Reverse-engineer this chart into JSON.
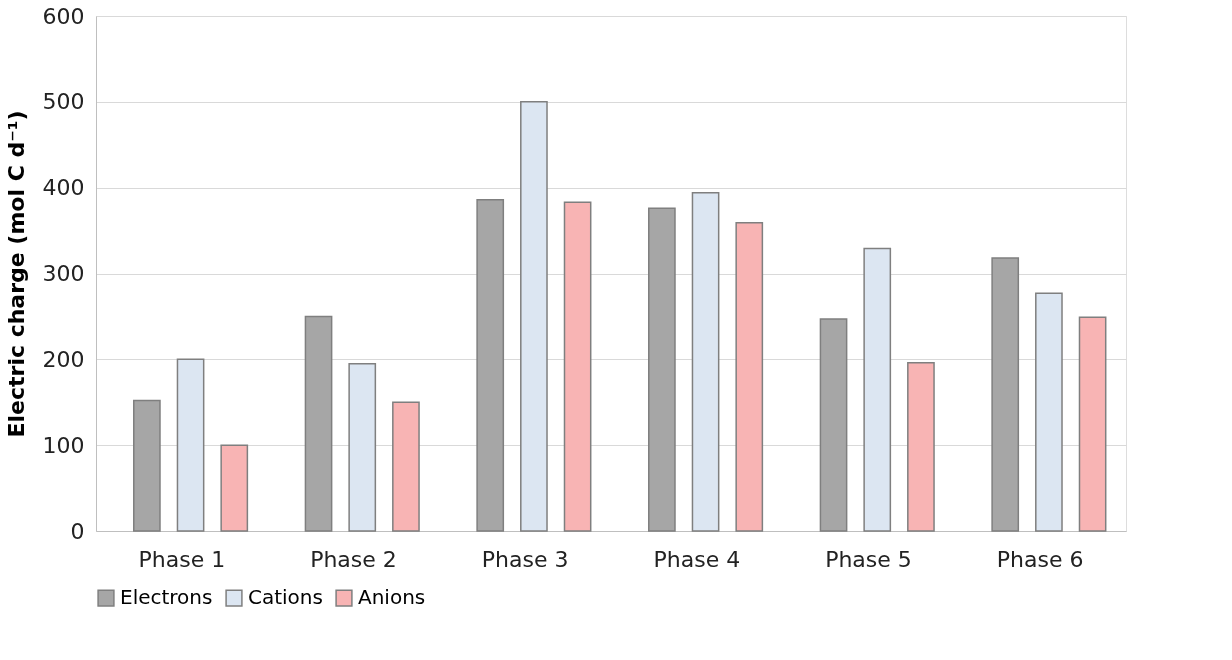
{
  "chart_data": {
    "type": "bar",
    "ylabel": "Electric charge (mol C d⁻¹)",
    "categories": [
      "Phase 1",
      "Phase 2",
      "Phase 3",
      "Phase 4",
      "Phase 5",
      "Phase 6"
    ],
    "series": [
      {
        "name": "Electrons",
        "color": "#a6a6a6",
        "values": [
          152,
          250,
          386,
          376,
          247,
          318
        ]
      },
      {
        "name": "Cations",
        "color": "#dce6f2",
        "values": [
          200,
          195,
          500,
          394,
          329,
          277
        ]
      },
      {
        "name": "Anions",
        "color": "#f8b4b4",
        "values": [
          100,
          150,
          383,
          359,
          196,
          249
        ]
      }
    ],
    "ylim": [
      0,
      600
    ],
    "yticks": [
      0,
      100,
      200,
      300,
      400,
      500,
      600
    ],
    "grid": "y",
    "legend": "bottom"
  }
}
